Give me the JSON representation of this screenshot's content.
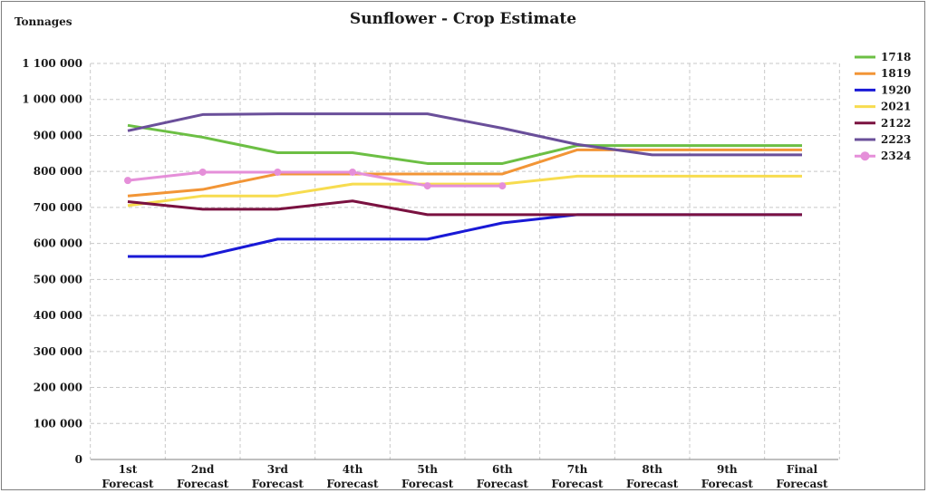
{
  "chart_data": {
    "type": "line",
    "title": "Sunflower - Crop Estimate",
    "ylabel": "Tonnages",
    "xlabel": "",
    "ylim": [
      0,
      1100000
    ],
    "yticks": [
      {
        "value": 0,
        "label": "0"
      },
      {
        "value": 100000,
        "label": "100 000"
      },
      {
        "value": 200000,
        "label": "200 000"
      },
      {
        "value": 300000,
        "label": "300 000"
      },
      {
        "value": 400000,
        "label": "400 000"
      },
      {
        "value": 500000,
        "label": "500 000"
      },
      {
        "value": 600000,
        "label": "600 000"
      },
      {
        "value": 700000,
        "label": "700 000"
      },
      {
        "value": 800000,
        "label": "800 000"
      },
      {
        "value": 900000,
        "label": "900 000"
      },
      {
        "value": 1000000,
        "label": "1 000 000"
      },
      {
        "value": 1100000,
        "label": "1 100 000"
      }
    ],
    "categories": [
      [
        "1st",
        "Forecast"
      ],
      [
        "2nd",
        "Forecast"
      ],
      [
        "3rd",
        "Forecast"
      ],
      [
        "4th",
        "Forecast"
      ],
      [
        "5th",
        "Forecast"
      ],
      [
        "6th",
        "Forecast"
      ],
      [
        "7th",
        "Forecast"
      ],
      [
        "8th",
        "Forecast"
      ],
      [
        "9th",
        "Forecast"
      ],
      [
        "Final",
        "Forecast"
      ]
    ],
    "grid": true,
    "legend": "right",
    "series": [
      {
        "name": "1718",
        "color": "#6cbf44",
        "markers": false,
        "values": [
          928000,
          895000,
          852000,
          852000,
          822000,
          822000,
          872000,
          872000,
          872000,
          872000
        ]
      },
      {
        "name": "1819",
        "color": "#f29536",
        "markers": false,
        "values": [
          732000,
          750000,
          793000,
          793000,
          793000,
          793000,
          860000,
          860000,
          860000,
          860000
        ]
      },
      {
        "name": "1920",
        "color": "#1919d6",
        "markers": false,
        "values": [
          564000,
          564000,
          612000,
          612000,
          612000,
          657000,
          680000,
          680000,
          680000,
          680000
        ]
      },
      {
        "name": "2021",
        "color": "#f7dc4f",
        "markers": false,
        "values": [
          705000,
          732000,
          732000,
          765000,
          765000,
          765000,
          787000,
          787000,
          787000,
          787000
        ]
      },
      {
        "name": "2122",
        "color": "#7a1140",
        "markers": false,
        "values": [
          716000,
          695000,
          695000,
          718000,
          680000,
          680000,
          680000,
          680000,
          680000,
          680000
        ]
      },
      {
        "name": "2223",
        "color": "#6a4f9a",
        "markers": false,
        "values": [
          913000,
          958000,
          960000,
          960000,
          960000,
          920000,
          875000,
          846000,
          846000,
          846000
        ]
      },
      {
        "name": "2324",
        "color": "#e58fd9",
        "markers": true,
        "values": [
          775000,
          798000,
          798000,
          798000,
          760000,
          760000,
          null,
          null,
          null,
          null
        ]
      }
    ]
  }
}
